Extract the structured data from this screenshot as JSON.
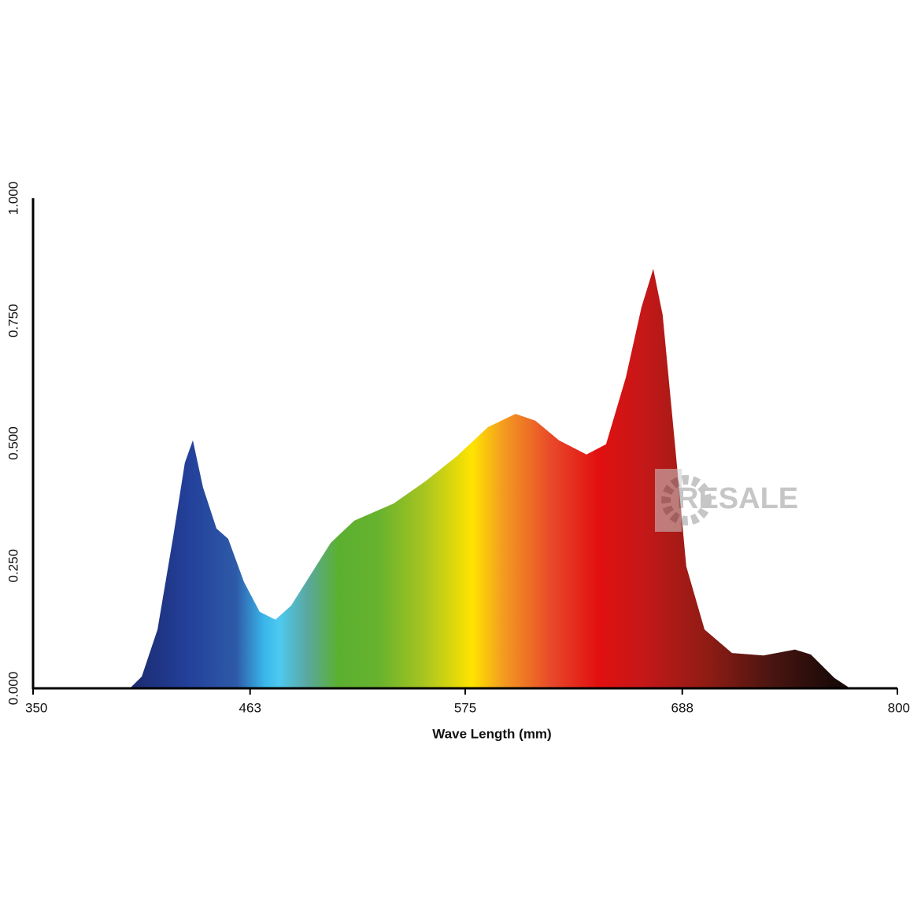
{
  "chart_data": {
    "type": "area",
    "x_label": "Wave Length (mm)",
    "watermark": "RESALE",
    "x": [
      400.4,
      406.6,
      414.8,
      423,
      429,
      433.2,
      438.5,
      445.5,
      451.6,
      459.8,
      468,
      476.2,
      484.4,
      494.7,
      505,
      517.2,
      537.7,
      554.1,
      570.5,
      586.9,
      601.2,
      611.5,
      623.8,
      638.1,
      648.3,
      658.6,
      666.8,
      672.9,
      677.8,
      684.4,
      690.1,
      699.6,
      713.9,
      730.3,
      746.7,
      754.9,
      767.2,
      775.4
    ],
    "values": [
      0,
      0.024,
      0.12,
      0.31,
      0.46,
      0.506,
      0.41,
      0.326,
      0.305,
      0.217,
      0.156,
      0.14,
      0.169,
      0.233,
      0.297,
      0.342,
      0.377,
      0.422,
      0.473,
      0.533,
      0.56,
      0.546,
      0.506,
      0.477,
      0.498,
      0.634,
      0.778,
      0.856,
      0.762,
      0.49,
      0.249,
      0.12,
      0.072,
      0.067,
      0.079,
      0.069,
      0.021,
      0
    ],
    "xlim": [
      350,
      800
    ],
    "xticks": [
      350,
      463,
      575,
      688,
      800
    ],
    "ylim": [
      0,
      1
    ],
    "yticks": [
      {
        "value": 0,
        "label": "0.000"
      },
      {
        "value": 0.25,
        "label": "0.250"
      },
      {
        "value": 0.5,
        "label": "0.500"
      },
      {
        "value": 0.75,
        "label": "0.750"
      },
      {
        "value": 1,
        "label": "1.000"
      }
    ],
    "grid": false
  }
}
